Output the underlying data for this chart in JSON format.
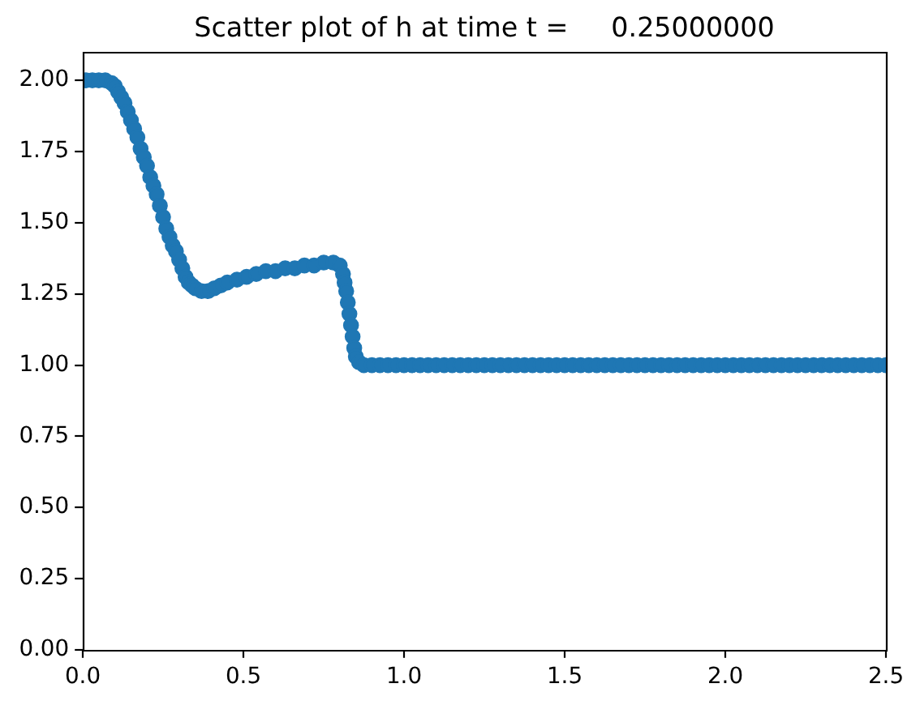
{
  "chart_data": {
    "type": "scatter",
    "title": "Scatter plot of h at time t =     0.25000000",
    "x": [
      0.01,
      0.03,
      0.05,
      0.07,
      0.09,
      0.1,
      0.11,
      0.12,
      0.13,
      0.14,
      0.15,
      0.16,
      0.17,
      0.18,
      0.19,
      0.2,
      0.21,
      0.22,
      0.23,
      0.24,
      0.25,
      0.26,
      0.27,
      0.28,
      0.29,
      0.3,
      0.31,
      0.32,
      0.33,
      0.34,
      0.35,
      0.37,
      0.39,
      0.41,
      0.43,
      0.45,
      0.48,
      0.51,
      0.54,
      0.57,
      0.6,
      0.63,
      0.66,
      0.69,
      0.72,
      0.75,
      0.78,
      0.8,
      0.81,
      0.815,
      0.82,
      0.825,
      0.83,
      0.835,
      0.84,
      0.845,
      0.85,
      0.86,
      0.875,
      0.9,
      0.925,
      0.95,
      0.975,
      1.0,
      1.025,
      1.05,
      1.075,
      1.1,
      1.125,
      1.15,
      1.175,
      1.2,
      1.225,
      1.25,
      1.275,
      1.3,
      1.325,
      1.35,
      1.375,
      1.4,
      1.425,
      1.45,
      1.475,
      1.5,
      1.525,
      1.55,
      1.575,
      1.6,
      1.625,
      1.65,
      1.675,
      1.7,
      1.725,
      1.75,
      1.775,
      1.8,
      1.825,
      1.85,
      1.875,
      1.9,
      1.925,
      1.95,
      1.975,
      2.0,
      2.025,
      2.05,
      2.075,
      2.1,
      2.125,
      2.15,
      2.175,
      2.2,
      2.225,
      2.25,
      2.275,
      2.3,
      2.325,
      2.35,
      2.375,
      2.4,
      2.425,
      2.45,
      2.475,
      2.5
    ],
    "values": [
      2.0,
      2.0,
      2.0,
      2.0,
      1.99,
      1.98,
      1.96,
      1.94,
      1.92,
      1.89,
      1.86,
      1.83,
      1.8,
      1.76,
      1.73,
      1.7,
      1.66,
      1.63,
      1.6,
      1.56,
      1.52,
      1.48,
      1.45,
      1.42,
      1.4,
      1.37,
      1.34,
      1.31,
      1.29,
      1.28,
      1.27,
      1.26,
      1.26,
      1.27,
      1.28,
      1.29,
      1.3,
      1.31,
      1.32,
      1.33,
      1.33,
      1.34,
      1.34,
      1.35,
      1.35,
      1.36,
      1.36,
      1.35,
      1.32,
      1.29,
      1.26,
      1.22,
      1.18,
      1.14,
      1.1,
      1.06,
      1.03,
      1.01,
      1.0,
      1.0,
      1.0,
      1.0,
      1.0,
      1.0,
      1.0,
      1.0,
      1.0,
      1.0,
      1.0,
      1.0,
      1.0,
      1.0,
      1.0,
      1.0,
      1.0,
      1.0,
      1.0,
      1.0,
      1.0,
      1.0,
      1.0,
      1.0,
      1.0,
      1.0,
      1.0,
      1.0,
      1.0,
      1.0,
      1.0,
      1.0,
      1.0,
      1.0,
      1.0,
      1.0,
      1.0,
      1.0,
      1.0,
      1.0,
      1.0,
      1.0,
      1.0,
      1.0,
      1.0,
      1.0,
      1.0,
      1.0,
      1.0,
      1.0,
      1.0,
      1.0,
      1.0,
      1.0,
      1.0,
      1.0,
      1.0,
      1.0,
      1.0,
      1.0,
      1.0,
      1.0,
      1.0,
      1.0,
      1.0,
      1.0
    ],
    "color": "#1f77b4",
    "marker": "circle",
    "grid": false,
    "xlim": [
      0,
      2.5
    ],
    "xticks": [
      {
        "value": 0,
        "label": "0.0"
      },
      0.5,
      {
        "value": 1,
        "label": "1.0"
      },
      1.5,
      {
        "value": 2,
        "label": "2.0"
      },
      2.5
    ],
    "ylim": [
      0,
      2.1
    ],
    "yticks": [
      {
        "value": 0,
        "label": "0.00"
      },
      0.25,
      {
        "value": 0.5,
        "label": "0.50"
      },
      0.75,
      {
        "value": 1,
        "label": "1.00"
      },
      1.25,
      {
        "value": 1.5,
        "label": "1.50"
      },
      1.75,
      {
        "value": 2,
        "label": "2.00"
      }
    ]
  }
}
